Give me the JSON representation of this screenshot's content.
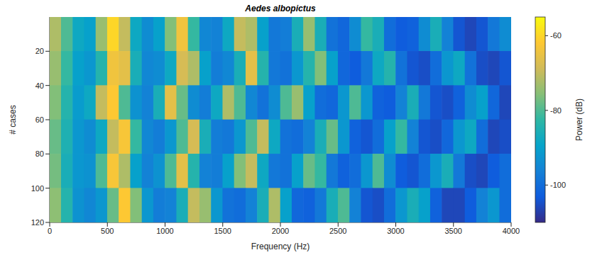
{
  "chart_data": {
    "type": "heatmap",
    "title": "Aedes albopictus",
    "x_label": "Frequency (Hz)",
    "y_label": "# cases",
    "x": [
      50,
      150,
      250,
      350,
      450,
      550,
      650,
      750,
      850,
      950,
      1050,
      1150,
      1250,
      1350,
      1450,
      1550,
      1650,
      1750,
      1850,
      1950,
      2050,
      2150,
      2250,
      2350,
      2450,
      2550,
      2650,
      2750,
      2850,
      2950,
      3050,
      3150,
      3250,
      3350,
      3450,
      3550,
      3650,
      3750,
      3850,
      3950
    ],
    "y": [
      10,
      30,
      50,
      70,
      90,
      110
    ],
    "z": [
      [
        -72,
        -80,
        -88,
        -90,
        -74,
        -60,
        -70,
        -88,
        -94,
        -90,
        -76,
        -64,
        -82,
        -95,
        -96,
        -88,
        -70,
        -72,
        -90,
        -98,
        -97,
        -86,
        -74,
        -86,
        -99,
        -101,
        -94,
        -82,
        -86,
        -100,
        -103,
        -102,
        -94,
        -86,
        -96,
        -104,
        -106,
        -104,
        -98,
        -94
      ],
      [
        -74,
        -82,
        -90,
        -92,
        -84,
        -64,
        -66,
        -86,
        -95,
        -94,
        -88,
        -68,
        -72,
        -90,
        -97,
        -95,
        -86,
        -66,
        -84,
        -98,
        -99,
        -92,
        -84,
        -76,
        -90,
        -101,
        -103,
        -98,
        -88,
        -84,
        -99,
        -104,
        -105,
        -100,
        -92,
        -88,
        -99,
        -105,
        -106,
        -104
      ],
      [
        -76,
        -84,
        -91,
        -88,
        -70,
        -62,
        -80,
        -93,
        -96,
        -86,
        -66,
        -78,
        -94,
        -97,
        -88,
        -72,
        -80,
        -95,
        -99,
        -94,
        -80,
        -74,
        -90,
        -100,
        -101,
        -92,
        -80,
        -92,
        -102,
        -103,
        -96,
        -86,
        -98,
        -104,
        -105,
        -102,
        -94,
        -90,
        -101,
        -106
      ],
      [
        -78,
        -85,
        -92,
        -94,
        -88,
        -70,
        -63,
        -82,
        -95,
        -97,
        -92,
        -80,
        -68,
        -86,
        -97,
        -98,
        -92,
        -80,
        -70,
        -88,
        -99,
        -100,
        -96,
        -86,
        -78,
        -92,
        -102,
        -104,
        -100,
        -90,
        -82,
        -96,
        -104,
        -105,
        -101,
        -92,
        -88,
        -100,
        -106,
        -105
      ],
      [
        -77,
        -86,
        -92,
        -93,
        -80,
        -63,
        -72,
        -90,
        -96,
        -93,
        -80,
        -66,
        -84,
        -96,
        -97,
        -90,
        -76,
        -70,
        -88,
        -98,
        -99,
        -90,
        -78,
        -82,
        -98,
        -102,
        -100,
        -92,
        -80,
        -94,
        -103,
        -104,
        -100,
        -92,
        -86,
        -98,
        -105,
        -106,
        -103,
        -100
      ],
      [
        -75,
        -84,
        -93,
        -95,
        -92,
        -78,
        -62,
        -76,
        -92,
        -97,
        -96,
        -86,
        -70,
        -74,
        -92,
        -99,
        -100,
        -96,
        -86,
        -72,
        -90,
        -101,
        -102,
        -98,
        -86,
        -80,
        -96,
        -104,
        -105,
        -100,
        -92,
        -86,
        -90,
        -102,
        -106,
        -106,
        -103,
        -96,
        -92,
        -100
      ]
    ],
    "xlim": [
      0,
      4000
    ],
    "xticks": [
      0,
      500,
      1000,
      1500,
      2000,
      2500,
      3000,
      3500,
      4000
    ],
    "ylim": [
      0,
      120
    ],
    "yticks": [
      20,
      40,
      60,
      80,
      100,
      120
    ],
    "colorbar": {
      "label": "Power (dB)",
      "range": [
        -110,
        -55
      ],
      "ticks": [
        -100,
        -80,
        -60
      ]
    }
  }
}
